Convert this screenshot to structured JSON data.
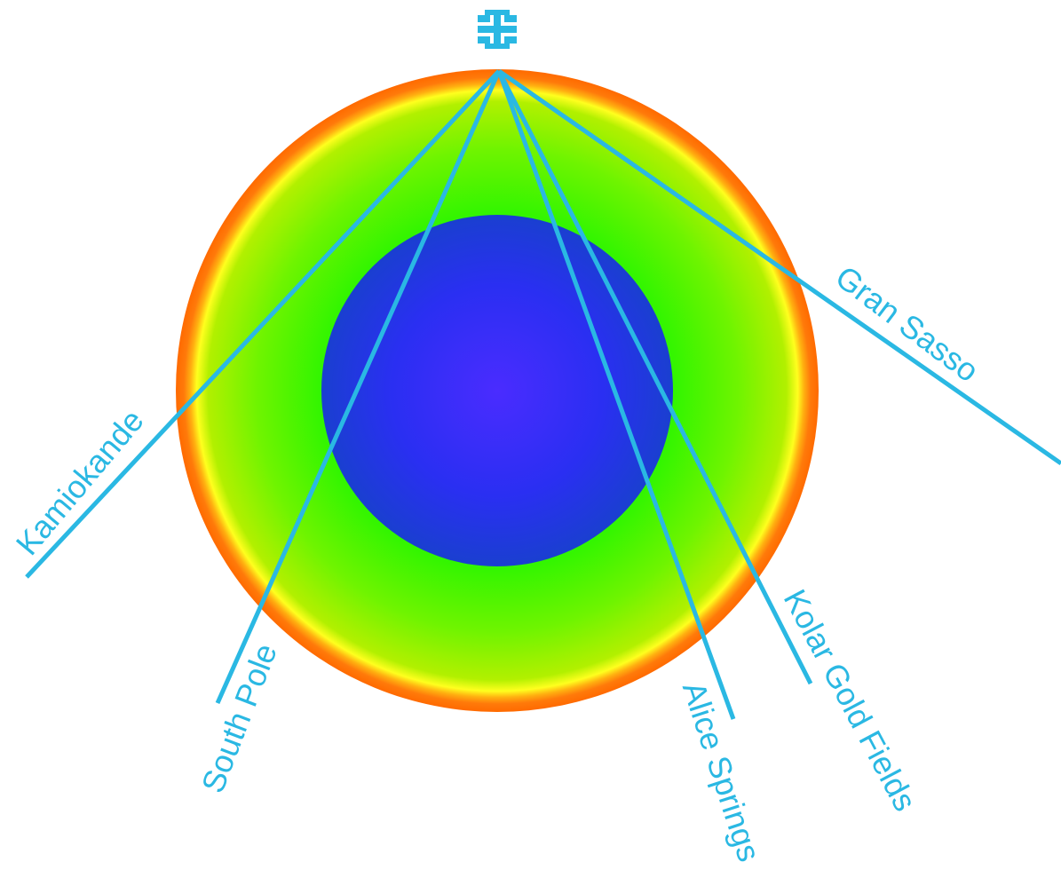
{
  "colors": {
    "beam": "#2ab8e3",
    "outer_shell": "#ff7a0a",
    "yellow_band": "#ffff1e",
    "mantle_outer": "#a4f200",
    "mantle_inner": "#3ef700",
    "core_edge": "#1a3fd0",
    "core_center": "#3a2cff",
    "background": "#ffffff"
  },
  "logo": {
    "icon": "fermilab-logo-icon"
  },
  "layers": [
    {
      "name": "crust",
      "color": "#ff7a0a"
    },
    {
      "name": "transition",
      "color": "#ffff1e"
    },
    {
      "name": "mantle",
      "color": "#a4f200"
    },
    {
      "name": "core",
      "color": "#1a3fd0"
    }
  ],
  "beams": [
    {
      "label": "Kamiokande"
    },
    {
      "label": "South Pole"
    },
    {
      "label": "Alice Springs"
    },
    {
      "label": "Kolar Gold Fields"
    },
    {
      "label": "Gran Sasso"
    }
  ]
}
